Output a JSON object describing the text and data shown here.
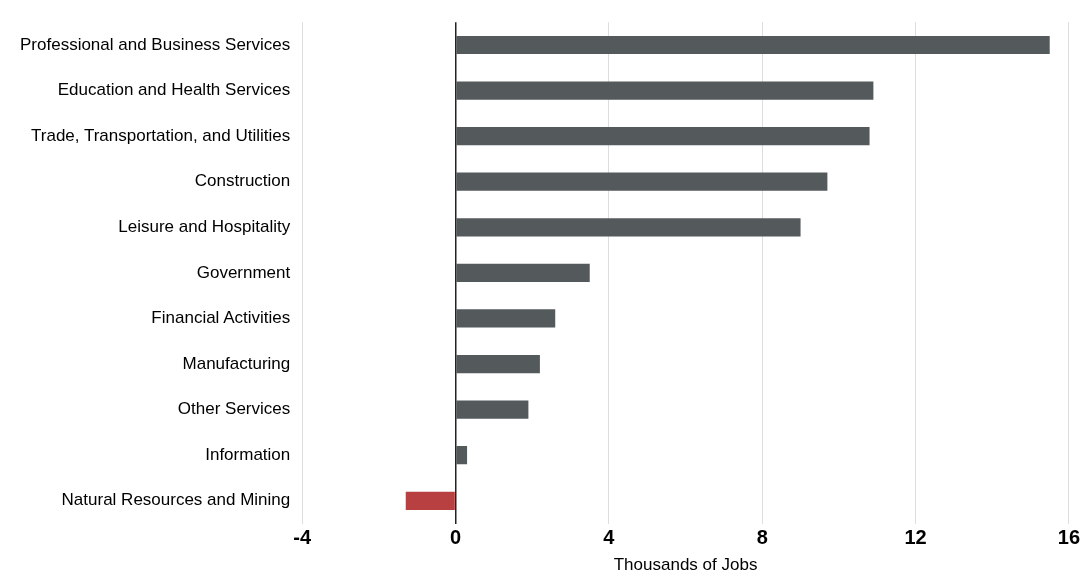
{
  "chart_data": {
    "type": "bar",
    "orientation": "horizontal",
    "xlabel": "Thousands of Jobs",
    "categories": [
      "Professional and Business Services",
      "Education and Health Services",
      "Trade, Transportation, and Utilities",
      "Construction",
      "Leisure and Hospitality",
      "Government",
      "Financial Activities",
      "Manufacturing",
      "Other Services",
      "Information",
      "Natural Resources and Mining"
    ],
    "values": [
      15.5,
      10.9,
      10.8,
      9.7,
      9.0,
      3.5,
      2.6,
      2.2,
      1.9,
      0.3,
      -1.3
    ],
    "colors": [
      "#545a5c",
      "#545a5c",
      "#545a5c",
      "#545a5c",
      "#545a5c",
      "#545a5c",
      "#545a5c",
      "#545a5c",
      "#545a5c",
      "#545a5c",
      "#b94040"
    ],
    "xlim": [
      -4,
      16
    ],
    "xticks": [
      -4,
      0,
      4,
      8,
      12,
      16
    ],
    "grid": "x",
    "legend": false
  }
}
